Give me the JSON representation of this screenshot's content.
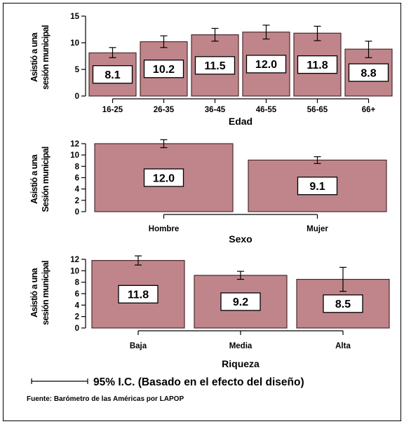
{
  "chart_data": [
    {
      "type": "bar",
      "ylabel": [
        "Asistió a una",
        "sesión municipal"
      ],
      "xlabel": "Edad",
      "categories": [
        "16-25",
        "26-35",
        "36-45",
        "46-55",
        "56-65",
        "66+"
      ],
      "values": [
        8.1,
        10.2,
        11.5,
        12.0,
        11.8,
        8.8
      ],
      "value_labels": [
        "8.1",
        "10.2",
        "11.5",
        "12.0",
        "11.8",
        "8.8"
      ],
      "ci_low": [
        7.2,
        9.1,
        10.3,
        10.7,
        10.4,
        7.2
      ],
      "ci_high": [
        9.1,
        11.3,
        12.7,
        13.3,
        13.1,
        10.3
      ],
      "yticks": [
        0,
        5,
        10,
        15
      ],
      "ylim": [
        0,
        15
      ]
    },
    {
      "type": "bar",
      "ylabel": [
        "Asistió a una",
        "Sesión municipal"
      ],
      "xlabel": "Sexo",
      "categories": [
        "Hombre",
        "Mujer"
      ],
      "values": [
        12.0,
        9.1
      ],
      "value_labels": [
        "12.0",
        "9.1"
      ],
      "ci_low": [
        11.3,
        8.5
      ],
      "ci_high": [
        12.7,
        9.7
      ],
      "yticks": [
        0,
        2,
        4,
        6,
        8,
        10,
        12
      ],
      "ylim": [
        0,
        12
      ]
    },
    {
      "type": "bar",
      "ylabel": [
        "Asistió a una",
        "sesión municipal"
      ],
      "xlabel": "Riqueza",
      "categories": [
        "Baja",
        "Media",
        "Alta"
      ],
      "values": [
        11.8,
        9.2,
        8.5
      ],
      "value_labels": [
        "11.8",
        "9.2",
        "8.5"
      ],
      "ci_low": [
        11.0,
        8.5,
        6.4
      ],
      "ci_high": [
        12.6,
        9.9,
        10.6
      ],
      "yticks": [
        0,
        2,
        4,
        6,
        8,
        10,
        12
      ],
      "ylim": [
        0,
        12
      ]
    }
  ],
  "legend_ci": "95% I.C. (Basado en el efecto del diseño)",
  "source": "Fuente: Barómetro de las Américas por LAPOP",
  "colors": {
    "bar_fill": "#c0858a",
    "bar_stroke": "#4a2a2d",
    "text": "#000000"
  }
}
